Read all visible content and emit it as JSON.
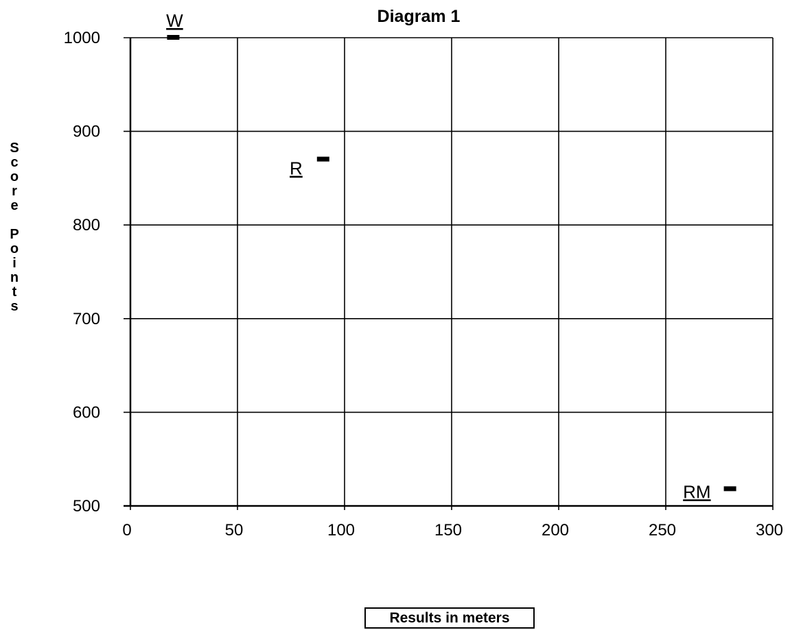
{
  "chart_data": {
    "type": "scatter",
    "title": "Diagram 1",
    "xlabel": "Results in meters",
    "ylabel": "Score Points",
    "xlim": [
      0,
      300
    ],
    "ylim": [
      500,
      1000
    ],
    "x_ticks": [
      0,
      50,
      100,
      150,
      200,
      250,
      300
    ],
    "y_ticks": [
      500,
      600,
      700,
      800,
      900,
      1000
    ],
    "x_tick_labels": [
      "0",
      "50",
      "100",
      "150",
      "200",
      "250",
      "300"
    ],
    "y_tick_labels": [
      "500",
      "600",
      "700",
      "800",
      "900",
      "1000"
    ],
    "grid": true,
    "points": [
      {
        "label": "W",
        "x": 20,
        "y": 1000
      },
      {
        "label": "R",
        "x": 90,
        "y": 870
      },
      {
        "label": "RM",
        "x": 280,
        "y": 518
      }
    ]
  }
}
